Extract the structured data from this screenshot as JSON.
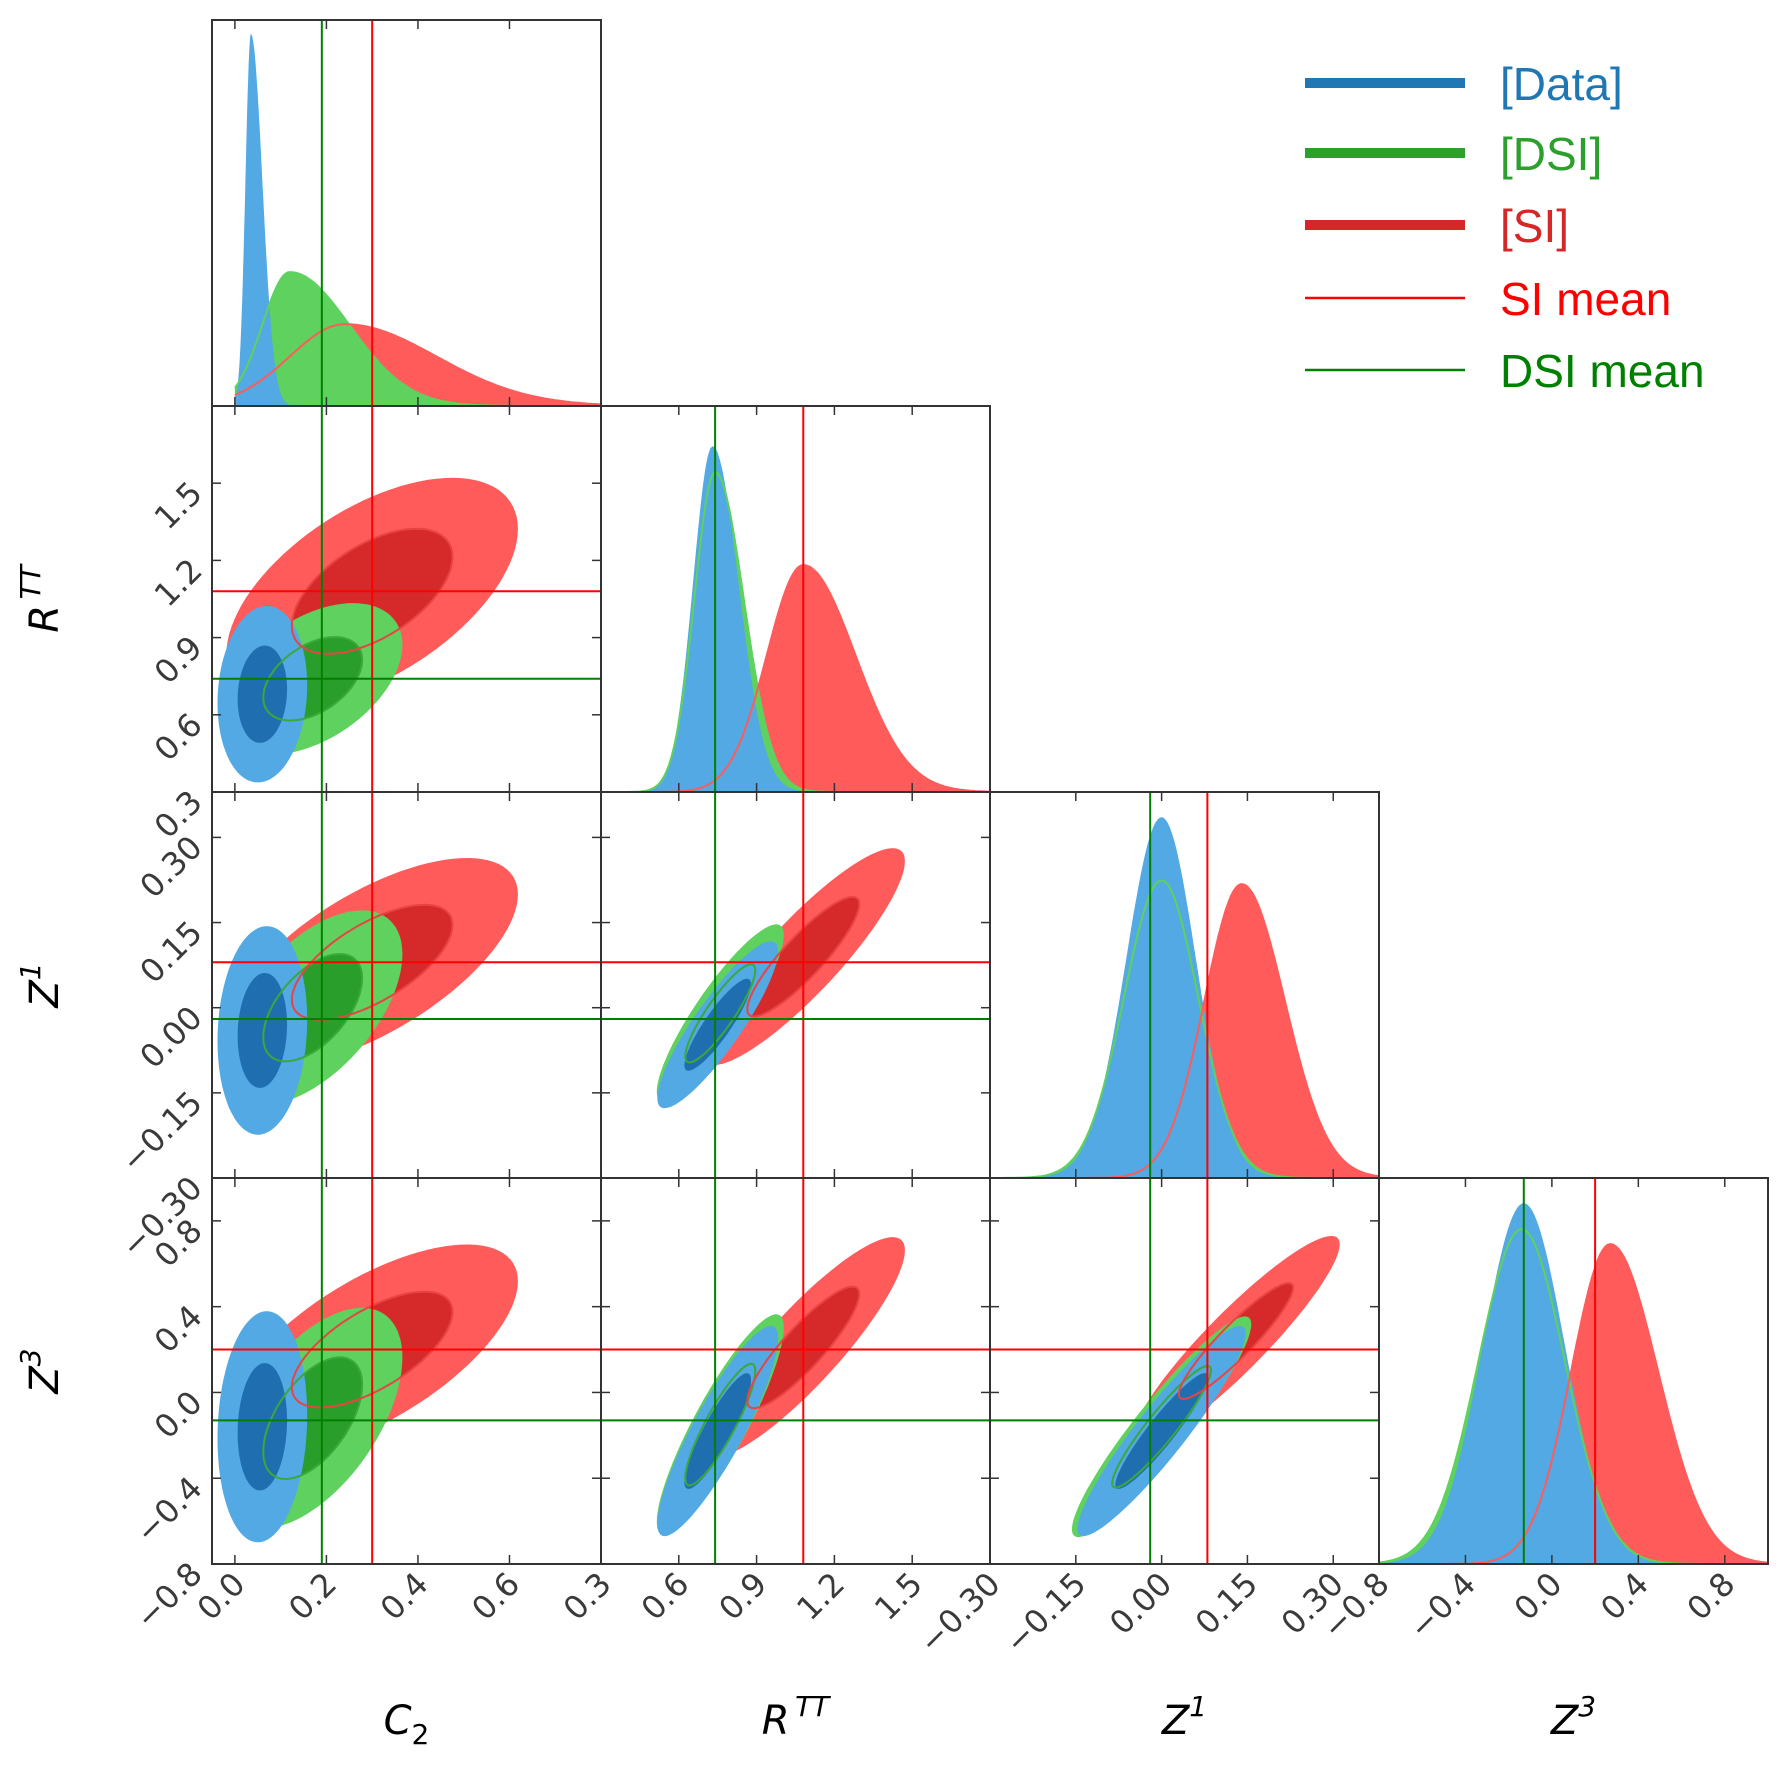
{
  "chart_data": {
    "type": "corner-triangle",
    "params": [
      {
        "key": "C2",
        "label": "C",
        "sub": "2",
        "sup": "",
        "range": [
          -0.05,
          0.8
        ],
        "ticks": [
          0.0,
          0.2,
          0.4,
          0.6
        ],
        "tick_labels": [
          "0.0",
          "0.2",
          "0.4",
          "0.6"
        ]
      },
      {
        "key": "RTT",
        "label": "R",
        "sub": "",
        "sup": "TT",
        "range": [
          0.3,
          1.8
        ],
        "ticks": [
          0.3,
          0.6,
          0.9,
          1.2,
          1.5
        ],
        "tick_labels": [
          "0.3",
          "0.6",
          "0.9",
          "1.2",
          "1.5"
        ]
      },
      {
        "key": "Z1",
        "label": "Z",
        "sub": "",
        "sup": "1",
        "range": [
          -0.3,
          0.38
        ],
        "ticks": [
          -0.3,
          -0.15,
          0.0,
          0.15,
          0.3
        ],
        "tick_labels": [
          "−0.30",
          "−0.15",
          "0.00",
          "0.15",
          "0.30"
        ]
      },
      {
        "key": "Z3",
        "label": "Z",
        "sub": "",
        "sup": "3",
        "range": [
          -0.8,
          1.0
        ],
        "ticks": [
          -0.8,
          -0.4,
          0.0,
          0.4,
          0.8
        ],
        "tick_labels": [
          "−0.8",
          "−0.4",
          "0.0",
          "0.4",
          "0.8"
        ]
      }
    ],
    "series": [
      {
        "name": "[Data]",
        "color": "#1f77b4",
        "fill": "#52a9e3",
        "fill_dark": "#1f6fb0",
        "legend_style": "thick",
        "marginals": [
          {
            "mode": 0.035,
            "left": 0.012,
            "right": 0.025,
            "peak": 1.0,
            "lo": 0.0,
            "hi": 0.16
          },
          {
            "mode": 0.73,
            "left": 0.075,
            "right": 0.1,
            "peak": 0.93,
            "lo": 0.3,
            "hi": 1.8
          },
          {
            "mode": 0.0,
            "left": 0.062,
            "right": 0.06,
            "peak": 0.97,
            "lo": -0.3,
            "hi": 0.38
          },
          {
            "mode": -0.13,
            "left": 0.19,
            "right": 0.19,
            "peak": 0.97,
            "lo": -0.8,
            "hi": 1.0
          }
        ],
        "contours2d": [
          {
            "x": "C2",
            "y": "RTT",
            "cx": 0.06,
            "cy": 0.68,
            "sx": 0.04,
            "sy": 0.14,
            "rho": 0.1
          },
          {
            "x": "C2",
            "y": "Z1",
            "cx": 0.06,
            "cy": -0.04,
            "sx": 0.04,
            "sy": 0.075,
            "rho": 0.1
          },
          {
            "x": "C2",
            "y": "Z3",
            "cx": 0.06,
            "cy": -0.16,
            "sx": 0.04,
            "sy": 0.22,
            "rho": 0.1
          },
          {
            "x": "RTT",
            "y": "Z1",
            "cx": 0.75,
            "cy": -0.03,
            "sx": 0.095,
            "sy": 0.06,
            "rho": 0.88
          },
          {
            "x": "RTT",
            "y": "Z3",
            "cx": 0.75,
            "cy": -0.18,
            "sx": 0.095,
            "sy": 0.2,
            "rho": 0.88
          },
          {
            "x": "Z1",
            "y": "Z3",
            "cx": 0.0,
            "cy": -0.18,
            "sx": 0.06,
            "sy": 0.2,
            "rho": 0.93
          }
        ]
      },
      {
        "name": "[DSI]",
        "color": "#2ca02c",
        "fill": "#5ed15e",
        "fill_dark": "#2a9e2a",
        "legend_style": "thick",
        "marginals": [
          {
            "mode": 0.12,
            "left": 0.06,
            "right": 0.13,
            "peak": 0.36,
            "lo": 0.0,
            "hi": 0.8
          },
          {
            "mode": 0.74,
            "left": 0.08,
            "right": 0.11,
            "peak": 0.86,
            "lo": 0.3,
            "hi": 1.8
          },
          {
            "mode": 0.0,
            "left": 0.066,
            "right": 0.064,
            "peak": 0.8,
            "lo": -0.3,
            "hi": 0.38
          },
          {
            "mode": -0.14,
            "left": 0.2,
            "right": 0.2,
            "peak": 0.9,
            "lo": -0.8,
            "hi": 1.0
          }
        ],
        "contours2d": [
          {
            "x": "C2",
            "y": "RTT",
            "cx": 0.17,
            "cy": 0.74,
            "sx": 0.08,
            "sy": 0.12,
            "rho": 0.45
          },
          {
            "x": "C2",
            "y": "Z1",
            "cx": 0.17,
            "cy": 0.0,
            "sx": 0.08,
            "sy": 0.07,
            "rho": 0.55
          },
          {
            "x": "C2",
            "y": "Z3",
            "cx": 0.17,
            "cy": -0.12,
            "sx": 0.08,
            "sy": 0.21,
            "rho": 0.55
          },
          {
            "x": "RTT",
            "y": "Z1",
            "cx": 0.76,
            "cy": -0.01,
            "sx": 0.1,
            "sy": 0.064,
            "rho": 0.88
          },
          {
            "x": "RTT",
            "y": "Z3",
            "cx": 0.76,
            "cy": -0.15,
            "sx": 0.1,
            "sy": 0.21,
            "rho": 0.88
          },
          {
            "x": "Z1",
            "y": "Z3",
            "cx": 0.0,
            "cy": -0.16,
            "sx": 0.064,
            "sy": 0.21,
            "rho": 0.93
          }
        ]
      },
      {
        "name": "[SI]",
        "color": "#d62728",
        "fill": "#ff5b5b",
        "fill_dark": "#d62a2a",
        "legend_style": "thick",
        "marginals": [
          {
            "mode": 0.24,
            "left": 0.12,
            "right": 0.2,
            "peak": 0.22,
            "lo": 0.0,
            "hi": 0.8
          },
          {
            "mode": 1.08,
            "left": 0.14,
            "right": 0.2,
            "peak": 0.61,
            "lo": 0.3,
            "hi": 1.8
          },
          {
            "mode": 0.14,
            "left": 0.065,
            "right": 0.075,
            "peak": 0.79,
            "lo": -0.3,
            "hi": 0.38
          },
          {
            "mode": 0.27,
            "left": 0.18,
            "right": 0.22,
            "peak": 0.86,
            "lo": -0.8,
            "hi": 1.0
          }
        ],
        "contours2d": [
          {
            "x": "C2",
            "y": "RTT",
            "cx": 0.3,
            "cy": 1.08,
            "sx": 0.13,
            "sy": 0.18,
            "rho": 0.55
          },
          {
            "x": "C2",
            "y": "Z1",
            "cx": 0.3,
            "cy": 0.08,
            "sx": 0.13,
            "sy": 0.075,
            "rho": 0.65
          },
          {
            "x": "C2",
            "y": "Z3",
            "cx": 0.3,
            "cy": 0.2,
            "sx": 0.13,
            "sy": 0.2,
            "rho": 0.65
          },
          {
            "x": "RTT",
            "y": "Z1",
            "cx": 1.08,
            "cy": 0.09,
            "sx": 0.16,
            "sy": 0.078,
            "rho": 0.88
          },
          {
            "x": "RTT",
            "y": "Z3",
            "cx": 1.08,
            "cy": 0.21,
            "sx": 0.16,
            "sy": 0.21,
            "rho": 0.88
          },
          {
            "x": "Z1",
            "y": "Z3",
            "cx": 0.13,
            "cy": 0.24,
            "sx": 0.074,
            "sy": 0.2,
            "rho": 0.92
          }
        ]
      }
    ],
    "mean_lines": [
      {
        "name": "SI mean",
        "color": "#ff0000",
        "values": {
          "C2": 0.3,
          "RTT": 1.08,
          "Z1": 0.08,
          "Z3": 0.2
        }
      },
      {
        "name": "DSI mean",
        "color": "#008000",
        "values": {
          "C2": 0.19,
          "RTT": 0.74,
          "Z1": -0.02,
          "Z3": -0.13
        }
      }
    ],
    "legend_position": "top-right",
    "grid": false
  }
}
